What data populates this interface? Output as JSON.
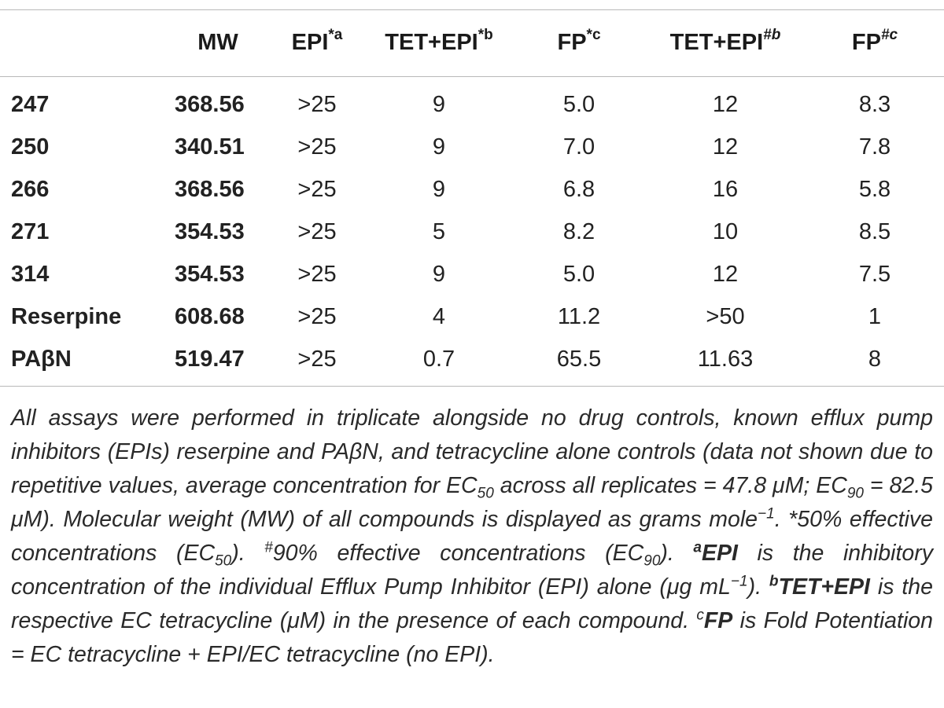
{
  "table": {
    "headers": {
      "col0": "",
      "mw": "MW",
      "epi": "EPI",
      "epi_sup": "*a",
      "tet_epi_50": "TET+EPI",
      "tet_epi_50_sup": "*b",
      "fp_50": "FP",
      "fp_50_sup": "*c",
      "tet_epi_90": "TET+EPI",
      "tet_epi_90_sup": "#b",
      "fp_90": "FP",
      "fp_90_sup": "#c"
    },
    "rows": [
      {
        "name": "247",
        "mw": "368.56",
        "epi": ">25",
        "tet_epi_50": "9",
        "fp_50": "5.0",
        "tet_epi_90": "12",
        "fp_90": "8.3"
      },
      {
        "name": "250",
        "mw": "340.51",
        "epi": ">25",
        "tet_epi_50": "9",
        "fp_50": "7.0",
        "tet_epi_90": "12",
        "fp_90": "7.8"
      },
      {
        "name": "266",
        "mw": "368.56",
        "epi": ">25",
        "tet_epi_50": "9",
        "fp_50": "6.8",
        "tet_epi_90": "16",
        "fp_90": "5.8"
      },
      {
        "name": "271",
        "mw": "354.53",
        "epi": ">25",
        "tet_epi_50": "5",
        "fp_50": "8.2",
        "tet_epi_90": "10",
        "fp_90": "8.5"
      },
      {
        "name": "314",
        "mw": "354.53",
        "epi": ">25",
        "tet_epi_50": "9",
        "fp_50": "5.0",
        "tet_epi_90": "12",
        "fp_90": "7.5"
      },
      {
        "name": "Reserpine",
        "mw": "608.68",
        "epi": ">25",
        "tet_epi_50": "4",
        "fp_50": "11.2",
        "tet_epi_90": ">50",
        "fp_90": "1"
      },
      {
        "name": "PAβN",
        "mw": "519.47",
        "epi": ">25",
        "tet_epi_50": "0.7",
        "fp_50": "65.5",
        "tet_epi_90": "11.63",
        "fp_90": "8"
      }
    ]
  },
  "footnote": {
    "p1": "All assays were performed in triplicate alongside no drug controls, known efflux pump inhibitors (EPIs) reserpine and PAβN, and tetracycline alone controls (data not shown due to repetitive values, average concentration for EC",
    "p1_sub": "50",
    "p2": " across all replicates = 47.8 μM; EC",
    "p2_sub": "90",
    "p3": " = 82.5 μM). Molecular weight (MW) of all compounds is displayed as grams mole",
    "p3_sup": "−1",
    "p4": ". *50% effective concentrations (EC",
    "p4_sub": "50",
    "p5": "). ",
    "p5_sup": "#",
    "p6": "90% effective concentrations (EC",
    "p6_sub": "90",
    "p7": "). ",
    "p7_sup": "a",
    "p8_bold": "EPI",
    "p9": " is the inhibitory concentration of the individual Efflux Pump Inhibitor (EPI) alone (μg mL",
    "p9_sup": "−1",
    "p10": "). ",
    "p10_sup": "b",
    "p11_bold": "TET+EPI",
    "p12": " is the respective EC tetracycline (μM) in the presence of each compound. ",
    "p12_sup": "c",
    "p13_bold": "FP",
    "p14": " is Fold Potentiation = EC tetracycline + EPI/EC tetracycline (no EPI)."
  }
}
